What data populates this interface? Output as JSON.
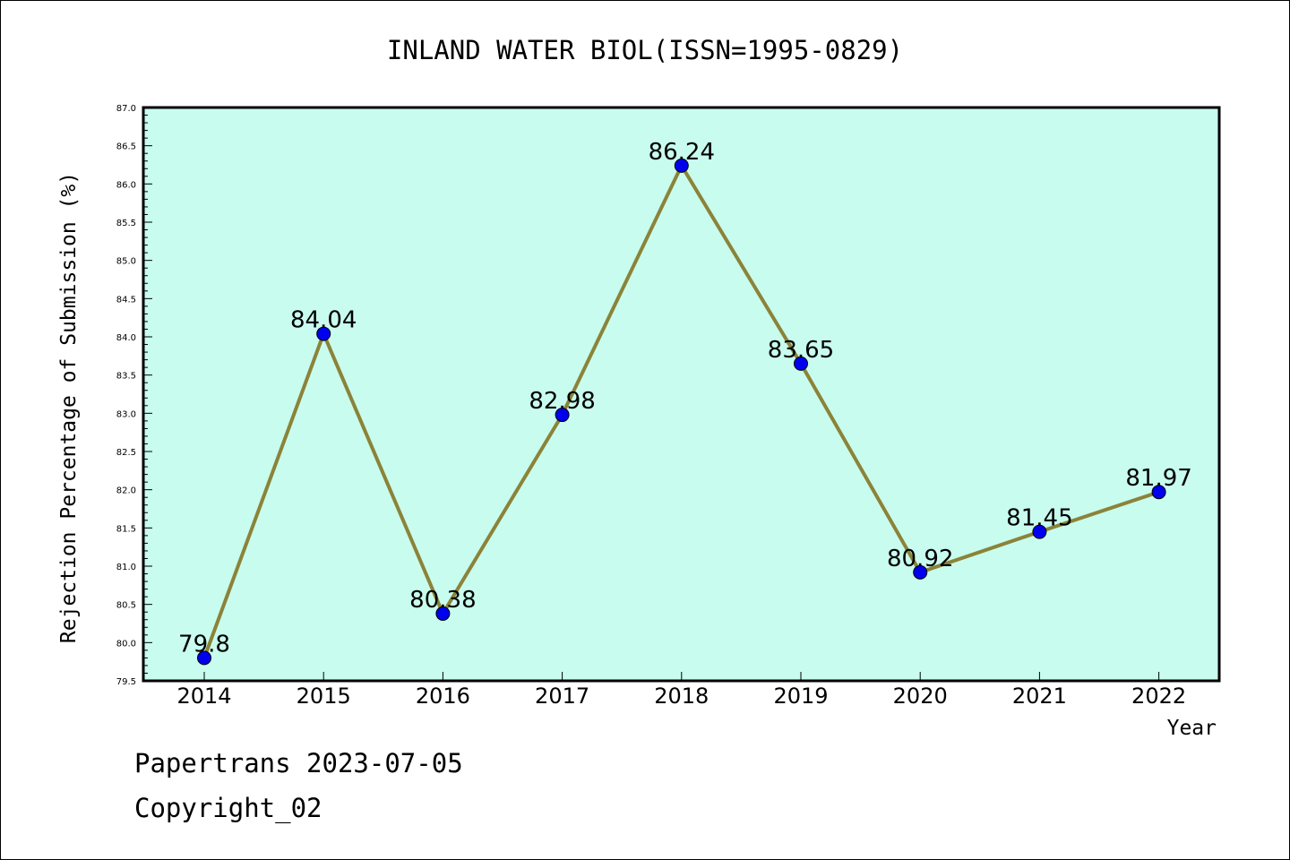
{
  "chart_data": {
    "type": "line",
    "title": "INLAND WATER BIOL(ISSN=1995-0829)",
    "xlabel": "Year",
    "ylabel": "Rejection Percentage of Submission (%)",
    "categories": [
      "2014",
      "2015",
      "2016",
      "2017",
      "2018",
      "2019",
      "2020",
      "2021",
      "2022"
    ],
    "values": [
      79.8,
      84.04,
      80.38,
      82.98,
      86.24,
      83.65,
      80.92,
      81.45,
      81.97
    ],
    "data_labels": [
      "79.8",
      "84.04",
      "80.38",
      "82.98",
      "86.24",
      "83.65",
      "80.92",
      "81.45",
      "81.97"
    ],
    "ylim": [
      79.5,
      87.0
    ],
    "yticks": [
      "79.5",
      "80.0",
      "80.5",
      "81.0",
      "81.5",
      "82.0",
      "82.5",
      "83.0",
      "83.5",
      "84.0",
      "84.5",
      "85.0",
      "85.5",
      "86.0",
      "86.5",
      "87.0"
    ],
    "grid": false,
    "colors": {
      "plot_background": "#c8fcee",
      "line": "#8b8339",
      "marker": "#0000ee"
    }
  },
  "footer": {
    "line1": "Papertrans 2023-07-05",
    "line2": "Copyright_02"
  }
}
